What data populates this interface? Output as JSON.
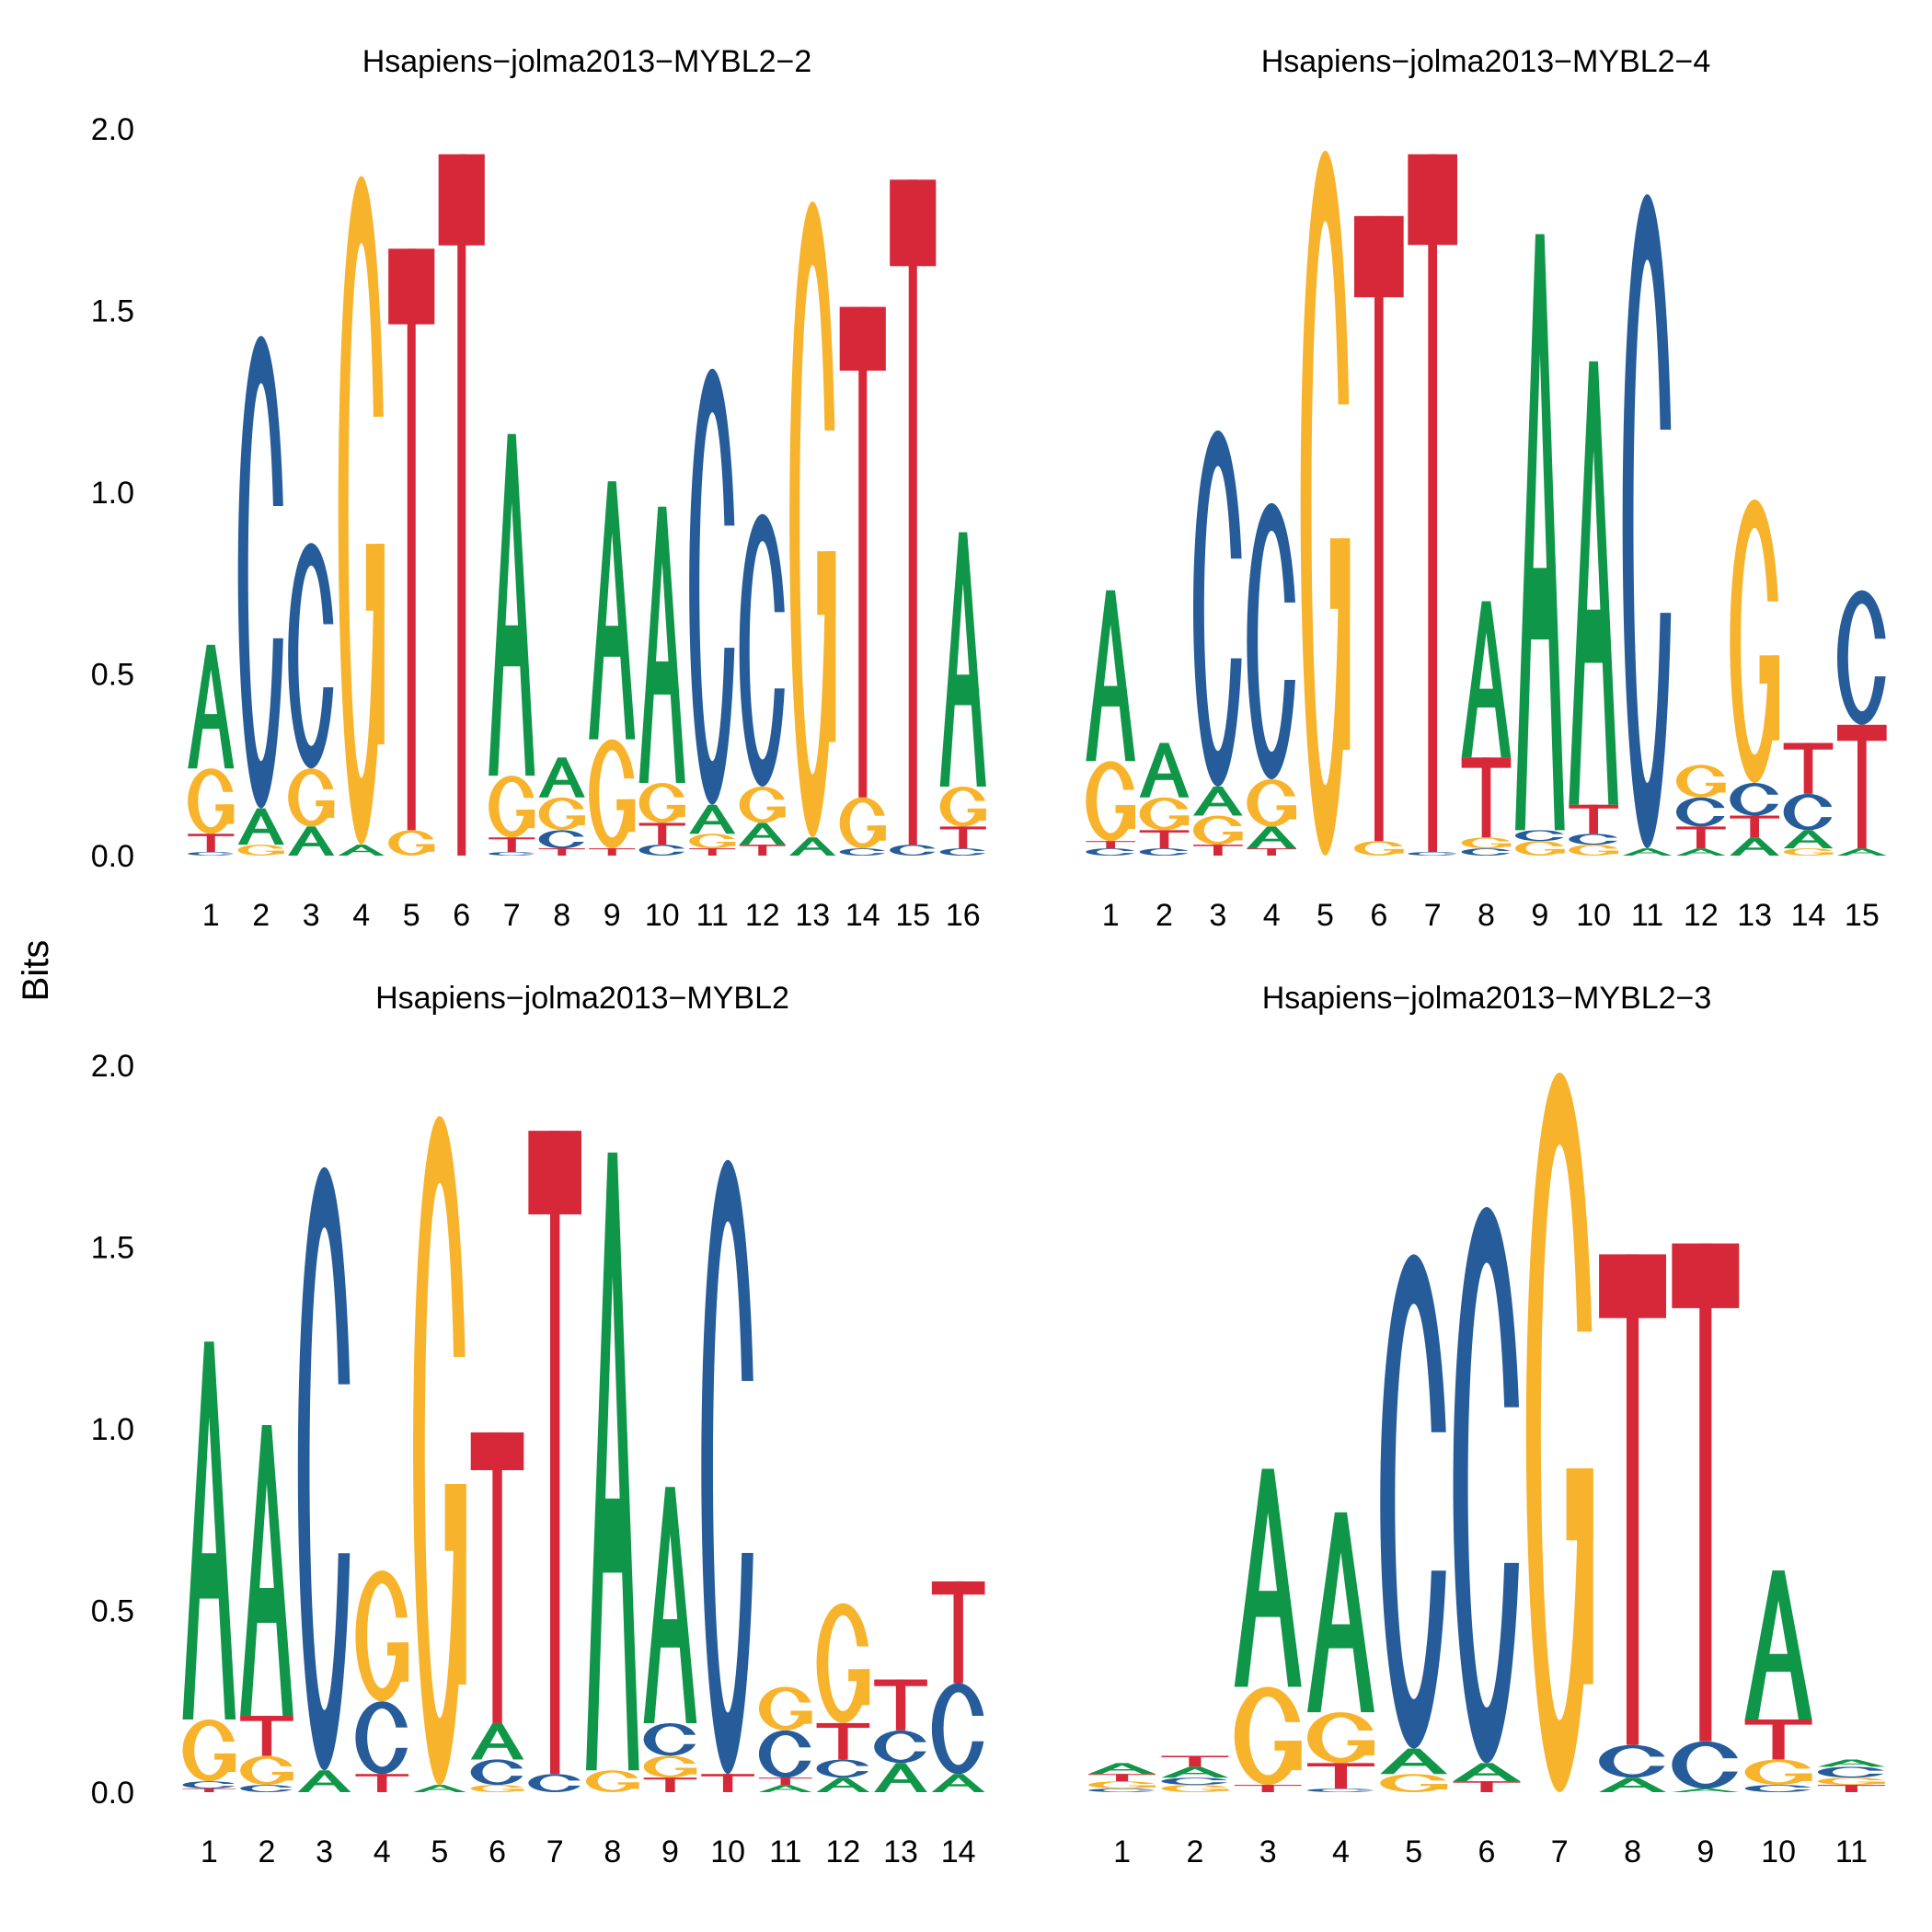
{
  "colors": {
    "A": "#109648",
    "C": "#255C99",
    "G": "#F7B32B",
    "T": "#D62839"
  },
  "y_axis_label": "Bits",
  "chart_data": [
    {
      "type": "sequence-logo",
      "title": "Hsapiens−jolma2013−MYBL2−2",
      "ylabel": "Bits",
      "ylim": [
        0,
        2.0
      ],
      "yticks": [
        "0.0",
        "0.5",
        "1.0",
        "1.5",
        "2.0"
      ],
      "positions": [
        "1",
        "2",
        "3",
        "4",
        "5",
        "6",
        "7",
        "8",
        "9",
        "10",
        "11",
        "12",
        "13",
        "14",
        "15",
        "16"
      ],
      "stacks": [
        [
          [
            "C",
            0.01
          ],
          [
            "T",
            0.05
          ],
          [
            "G",
            0.18
          ],
          [
            "A",
            0.34
          ]
        ],
        [
          [
            "G",
            0.03
          ],
          [
            "A",
            0.1
          ],
          [
            "C",
            1.3
          ]
        ],
        [
          [
            "A",
            0.08
          ],
          [
            "G",
            0.16
          ],
          [
            "C",
            0.62
          ]
        ],
        [
          [
            "A",
            0.03
          ],
          [
            "G",
            1.84
          ]
        ],
        [
          [
            "G",
            0.07
          ],
          [
            "T",
            1.6
          ]
        ],
        [
          [
            "T",
            1.93
          ]
        ],
        [
          [
            "C",
            0.01
          ],
          [
            "T",
            0.04
          ],
          [
            "G",
            0.17
          ],
          [
            "A",
            0.94
          ]
        ],
        [
          [
            "T",
            0.02
          ],
          [
            "C",
            0.05
          ],
          [
            "G",
            0.09
          ],
          [
            "A",
            0.11
          ]
        ],
        [
          [
            "T",
            0.02
          ],
          [
            "G",
            0.3
          ],
          [
            "A",
            0.71
          ]
        ],
        [
          [
            "C",
            0.03
          ],
          [
            "T",
            0.06
          ],
          [
            "G",
            0.11
          ],
          [
            "A",
            0.76
          ]
        ],
        [
          [
            "T",
            0.02
          ],
          [
            "G",
            0.04
          ],
          [
            "A",
            0.08
          ],
          [
            "C",
            1.2
          ]
        ],
        [
          [
            "T",
            0.03
          ],
          [
            "A",
            0.06
          ],
          [
            "G",
            0.1
          ],
          [
            "C",
            0.75
          ]
        ],
        [
          [
            "A",
            0.05
          ],
          [
            "G",
            1.75
          ]
        ],
        [
          [
            "C",
            0.02
          ],
          [
            "G",
            0.14
          ],
          [
            "T",
            1.35
          ]
        ],
        [
          [
            "C",
            0.03
          ],
          [
            "T",
            1.83
          ]
        ],
        [
          [
            "C",
            0.02
          ],
          [
            "T",
            0.06
          ],
          [
            "G",
            0.11
          ],
          [
            "A",
            0.7
          ]
        ]
      ]
    },
    {
      "type": "sequence-logo",
      "title": "Hsapiens−jolma2013−MYBL2−4",
      "ylabel": "Bits",
      "ylim": [
        0,
        2.0
      ],
      "yticks": [
        "0.0",
        "0.5",
        "1.0",
        "1.5",
        "2.0"
      ],
      "positions": [
        "1",
        "2",
        "3",
        "4",
        "5",
        "6",
        "7",
        "8",
        "9",
        "10",
        "11",
        "12",
        "13",
        "14",
        "15"
      ],
      "stacks": [
        [
          [
            "C",
            0.02
          ],
          [
            "T",
            0.02
          ],
          [
            "G",
            0.22
          ],
          [
            "A",
            0.47
          ]
        ],
        [
          [
            "C",
            0.02
          ],
          [
            "T",
            0.05
          ],
          [
            "G",
            0.09
          ],
          [
            "A",
            0.15
          ]
        ],
        [
          [
            "T",
            0.03
          ],
          [
            "G",
            0.08
          ],
          [
            "A",
            0.08
          ],
          [
            "C",
            0.98
          ]
        ],
        [
          [
            "T",
            0.02
          ],
          [
            "A",
            0.06
          ],
          [
            "G",
            0.13
          ],
          [
            "C",
            0.76
          ]
        ],
        [
          [
            "G",
            1.94
          ]
        ],
        [
          [
            "G",
            0.04
          ],
          [
            "T",
            1.72
          ]
        ],
        [
          [
            "C",
            0.01
          ],
          [
            "T",
            1.92
          ]
        ],
        [
          [
            "C",
            0.02
          ],
          [
            "G",
            0.03
          ],
          [
            "T",
            0.22
          ],
          [
            "A",
            0.43
          ]
        ],
        [
          [
            "G",
            0.04
          ],
          [
            "C",
            0.03
          ],
          [
            "A",
            1.64
          ]
        ],
        [
          [
            "G",
            0.03
          ],
          [
            "C",
            0.03
          ],
          [
            "T",
            0.08
          ],
          [
            "A",
            1.22
          ]
        ],
        [
          [
            "A",
            0.02
          ],
          [
            "C",
            1.8
          ]
        ],
        [
          [
            "A",
            0.02
          ],
          [
            "T",
            0.06
          ],
          [
            "C",
            0.08
          ],
          [
            "G",
            0.09
          ]
        ],
        [
          [
            "A",
            0.05
          ],
          [
            "T",
            0.06
          ],
          [
            "C",
            0.09
          ],
          [
            "G",
            0.78
          ]
        ],
        [
          [
            "G",
            0.02
          ],
          [
            "A",
            0.05
          ],
          [
            "C",
            0.1
          ],
          [
            "T",
            0.14
          ]
        ],
        [
          [
            "A",
            0.02
          ],
          [
            "T",
            0.34
          ],
          [
            "C",
            0.37
          ]
        ]
      ]
    },
    {
      "type": "sequence-logo",
      "title": "Hsapiens−jolma2013−MYBL2",
      "ylabel": "Bits",
      "ylim": [
        0,
        2.0
      ],
      "yticks": [
        "0.0",
        "0.5",
        "1.0",
        "1.5",
        "2.0"
      ],
      "positions": [
        "1",
        "2",
        "3",
        "4",
        "5",
        "6",
        "7",
        "8",
        "9",
        "10",
        "11",
        "12",
        "13",
        "14"
      ],
      "stacks": [
        [
          [
            "T",
            0.01
          ],
          [
            "C",
            0.02
          ],
          [
            "G",
            0.17
          ],
          [
            "A",
            1.04
          ]
        ],
        [
          [
            "C",
            0.02
          ],
          [
            "G",
            0.08
          ],
          [
            "T",
            0.11
          ],
          [
            "A",
            0.8
          ]
        ],
        [
          [
            "A",
            0.06
          ],
          [
            "C",
            1.66
          ]
        ],
        [
          [
            "T",
            0.05
          ],
          [
            "C",
            0.2
          ],
          [
            "G",
            0.36
          ]
        ],
        [
          [
            "A",
            0.02
          ],
          [
            "G",
            1.84
          ]
        ],
        [
          [
            "G",
            0.02
          ],
          [
            "C",
            0.07
          ],
          [
            "A",
            0.1
          ],
          [
            "T",
            0.8
          ]
        ],
        [
          [
            "C",
            0.05
          ],
          [
            "T",
            1.77
          ]
        ],
        [
          [
            "G",
            0.06
          ],
          [
            "A",
            1.7
          ]
        ],
        [
          [
            "T",
            0.04
          ],
          [
            "G",
            0.06
          ],
          [
            "C",
            0.09
          ],
          [
            "A",
            0.65
          ]
        ],
        [
          [
            "T",
            0.05
          ],
          [
            "C",
            1.69
          ]
        ],
        [
          [
            "A",
            0.02
          ],
          [
            "T",
            0.02
          ],
          [
            "C",
            0.13
          ],
          [
            "G",
            0.12
          ]
        ],
        [
          [
            "A",
            0.04
          ],
          [
            "C",
            0.05
          ],
          [
            "T",
            0.1
          ],
          [
            "G",
            0.33
          ]
        ],
        [
          [
            "A",
            0.08
          ],
          [
            "C",
            0.09
          ],
          [
            "T",
            0.14
          ]
        ],
        [
          [
            "A",
            0.05
          ],
          [
            "C",
            0.25
          ],
          [
            "T",
            0.28
          ]
        ]
      ]
    },
    {
      "type": "sequence-logo",
      "title": "Hsapiens−jolma2013−MYBL2−3",
      "ylabel": "Bits",
      "ylim": [
        0,
        2.0
      ],
      "yticks": [
        "0.0",
        "0.5",
        "1.0",
        "1.5",
        "2.0"
      ],
      "positions": [
        "1",
        "2",
        "3",
        "4",
        "5",
        "6",
        "7",
        "8",
        "9",
        "10",
        "11"
      ],
      "stacks": [
        [
          [
            "C",
            0.01
          ],
          [
            "G",
            0.02
          ],
          [
            "T",
            0.02
          ],
          [
            "A",
            0.03
          ]
        ],
        [
          [
            "G",
            0.02
          ],
          [
            "C",
            0.02
          ],
          [
            "A",
            0.03
          ],
          [
            "T",
            0.03
          ]
        ],
        [
          [
            "T",
            0.02
          ],
          [
            "G",
            0.27
          ],
          [
            "A",
            0.6
          ]
        ],
        [
          [
            "C",
            0.01
          ],
          [
            "T",
            0.07
          ],
          [
            "G",
            0.14
          ],
          [
            "A",
            0.55
          ]
        ],
        [
          [
            "G",
            0.05
          ],
          [
            "A",
            0.07
          ],
          [
            "C",
            1.36
          ]
        ],
        [
          [
            "T",
            0.03
          ],
          [
            "A",
            0.05
          ],
          [
            "C",
            1.53
          ]
        ],
        [
          [
            "G",
            1.98
          ]
        ],
        [
          [
            "A",
            0.04
          ],
          [
            "C",
            0.09
          ],
          [
            "T",
            1.35
          ]
        ],
        [
          [
            "A",
            0.01
          ],
          [
            "C",
            0.13
          ],
          [
            "T",
            1.37
          ]
        ],
        [
          [
            "C",
            0.02
          ],
          [
            "G",
            0.07
          ],
          [
            "T",
            0.11
          ],
          [
            "A",
            0.41
          ]
        ],
        [
          [
            "T",
            0.02
          ],
          [
            "G",
            0.02
          ],
          [
            "C",
            0.03
          ],
          [
            "A",
            0.02
          ]
        ]
      ]
    }
  ]
}
